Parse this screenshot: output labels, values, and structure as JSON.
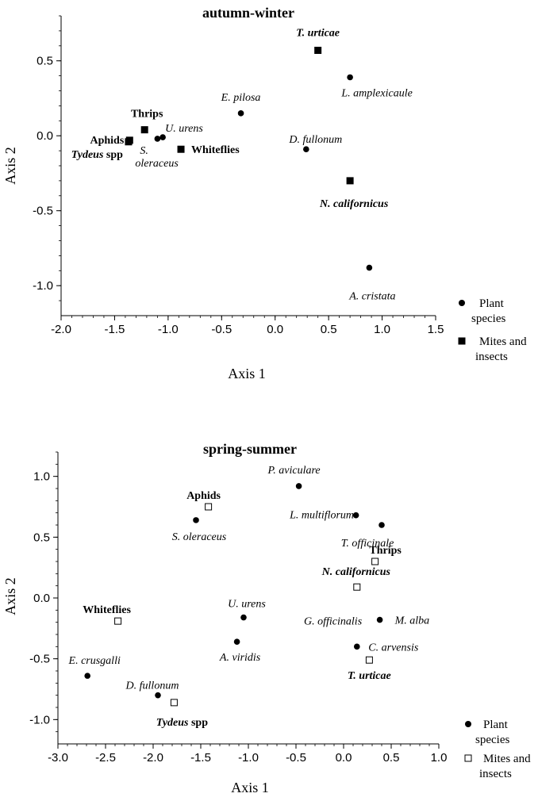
{
  "chart_data": [
    {
      "type": "scatter",
      "title": "autumn-winter",
      "xlabel": "Axis 1",
      "ylabel": "Axis 2",
      "xlim": [
        -2.0,
        1.5
      ],
      "ylim": [
        -1.2,
        0.8
      ],
      "xticks": [
        "-2.0",
        "-1.5",
        "-1.0",
        "-0.5",
        "0.0",
        "0.5",
        "1.0",
        "1.5"
      ],
      "yticks": [
        "0.5",
        "0.0",
        "-0.5",
        "-1.0"
      ],
      "grid": false,
      "legend_placement": "right",
      "legend": [
        {
          "marker": "filled-circle",
          "label": [
            "Plant",
            "species"
          ]
        },
        {
          "marker": "filled-square",
          "label": [
            "Mites and",
            "insects"
          ]
        }
      ],
      "points": [
        {
          "label": "T. urticae",
          "group": "mites-insects",
          "x": 0.4,
          "y": 0.57,
          "style": "bold-italic"
        },
        {
          "label": "L. amplexicaule",
          "group": "plants",
          "x": 0.7,
          "y": 0.39,
          "style": "italic"
        },
        {
          "label": "E. pilosa",
          "group": "plants",
          "x": -0.32,
          "y": 0.15,
          "style": "italic"
        },
        {
          "label": "Thrips",
          "group": "mites-insects",
          "x": -1.22,
          "y": 0.04,
          "style": "bold"
        },
        {
          "label": "Aphids",
          "group": "mites-insects",
          "x": -1.36,
          "y": -0.03,
          "style": "bold"
        },
        {
          "label": "Tydeus spp",
          "group": "mites-insects",
          "x": -1.37,
          "y": -0.04,
          "style": "bold-italic-part"
        },
        {
          "label": "S. oleraceus",
          "group": "plants",
          "x": -1.1,
          "y": -0.02,
          "style": "italic"
        },
        {
          "label": "U. urens",
          "group": "plants",
          "x": -1.05,
          "y": -0.01,
          "style": "italic"
        },
        {
          "label": "Whiteflies",
          "group": "mites-insects",
          "x": -0.88,
          "y": -0.09,
          "style": "bold"
        },
        {
          "label": "D. fullonum",
          "group": "plants",
          "x": 0.29,
          "y": -0.09,
          "style": "italic"
        },
        {
          "label": "N. californicus",
          "group": "mites-insects",
          "x": 0.7,
          "y": -0.3,
          "style": "bold-italic"
        },
        {
          "label": "A. cristata",
          "group": "plants",
          "x": 0.88,
          "y": -0.88,
          "style": "italic"
        }
      ]
    },
    {
      "type": "scatter",
      "title": "spring-summer",
      "xlabel": "Axis 1",
      "ylabel": "Axis 2",
      "xlim": [
        -3.0,
        1.0
      ],
      "ylim": [
        -1.2,
        1.2
      ],
      "xticks": [
        "-3.0",
        "-2.5",
        "-2.0",
        "-1.5",
        "-1.0",
        "-0.5",
        "0.0",
        "0.5",
        "1.0"
      ],
      "yticks": [
        "1.0",
        "0.5",
        "0.0",
        "-0.5",
        "-1.0"
      ],
      "grid": false,
      "legend_placement": "right",
      "legend": [
        {
          "marker": "filled-circle",
          "label": [
            "Plant",
            "species"
          ]
        },
        {
          "marker": "open-square",
          "label": [
            "Mites and",
            "insects"
          ]
        }
      ],
      "points": [
        {
          "label": "P. aviculare",
          "group": "plants",
          "x": -0.47,
          "y": 0.92,
          "style": "italic"
        },
        {
          "label": "Aphids",
          "group": "mites-insects",
          "x": -1.42,
          "y": 0.75,
          "style": "bold"
        },
        {
          "label": "L. multiflorum",
          "group": "plants",
          "x": 0.13,
          "y": 0.68,
          "style": "italic"
        },
        {
          "label": "S. oleraceus",
          "group": "plants",
          "x": -1.55,
          "y": 0.64,
          "style": "italic"
        },
        {
          "label": "T. officinale",
          "group": "plants",
          "x": 0.4,
          "y": 0.6,
          "style": "italic"
        },
        {
          "label": "Thrips",
          "group": "mites-insects",
          "x": 0.33,
          "y": 0.3,
          "style": "bold"
        },
        {
          "label": "N. californicus",
          "group": "mites-insects",
          "x": 0.14,
          "y": 0.09,
          "style": "bold-italic"
        },
        {
          "label": "U. urens",
          "group": "plants",
          "x": -1.05,
          "y": -0.16,
          "style": "italic"
        },
        {
          "label": "M. alba",
          "group": "plants",
          "x": 0.38,
          "y": -0.18,
          "style": "italic"
        },
        {
          "label": "Whiteflies",
          "group": "mites-insects",
          "x": -2.37,
          "y": -0.19,
          "style": "bold"
        },
        {
          "label": "G. officinalis",
          "group": "plants",
          "x": 0.38,
          "y": -0.18,
          "style": "italic-only-label"
        },
        {
          "label": "A. viridis",
          "group": "plants",
          "x": -1.12,
          "y": -0.36,
          "style": "italic"
        },
        {
          "label": "C. arvensis",
          "group": "plants",
          "x": 0.14,
          "y": -0.4,
          "style": "italic"
        },
        {
          "label": "T. urticae",
          "group": "mites-insects",
          "x": 0.27,
          "y": -0.51,
          "style": "bold-italic"
        },
        {
          "label": "E. crusgalli",
          "group": "plants",
          "x": -2.69,
          "y": -0.64,
          "style": "italic"
        },
        {
          "label": "D. fullonum",
          "group": "plants",
          "x": -1.95,
          "y": -0.8,
          "style": "italic"
        },
        {
          "label": "Tydeus spp",
          "group": "mites-insects",
          "x": -1.78,
          "y": -0.86,
          "style": "bold-italic-part"
        }
      ]
    }
  ]
}
